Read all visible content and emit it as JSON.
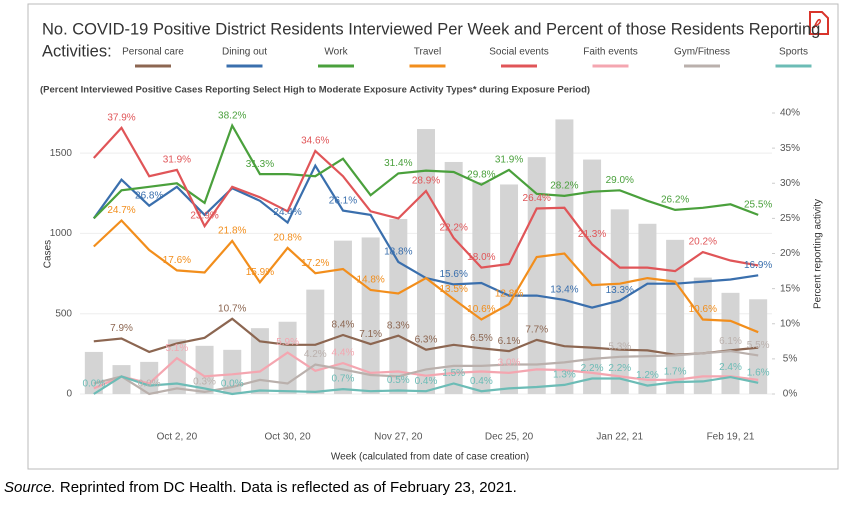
{
  "chart_data": {
    "type": "combo",
    "title": [
      "No. COVID-19 Positive District Residents Interviewed Per Week and Percent of those Residents Reporting",
      "Activities:"
    ],
    "subtitle": "(Percent Interviewed Positive Cases Reporting Select High to Moderate Exposure Activity Types* during Exposure Period)",
    "ylabel": "Cases",
    "y2label": "Percent reporting activity",
    "xlabel": "Week (calculated from date of case creation)",
    "categories": [
      null,
      null,
      null,
      "Oct 2, 20",
      null,
      null,
      null,
      "Oct 30, 20",
      null,
      null,
      null,
      "Nov 27, 20",
      null,
      null,
      null,
      "Dec 25, 20",
      null,
      null,
      null,
      "Jan 22, 21",
      null,
      null,
      null,
      "Feb 19, 21",
      null
    ],
    "ylim": [
      0,
      1750
    ],
    "yticks": [
      0,
      500,
      1000,
      1500
    ],
    "y2lim": [
      0,
      40
    ],
    "y2ticks": [
      {
        "value": 0,
        "label": "0%"
      },
      {
        "value": 5,
        "label": "5%"
      },
      {
        "value": 10,
        "label": "10%"
      },
      {
        "value": 15,
        "label": "15%"
      },
      {
        "value": 20,
        "label": "20%"
      },
      {
        "value": 25,
        "label": "25%"
      },
      {
        "value": 30,
        "label": "30%"
      },
      {
        "value": 35,
        "label": "35%"
      },
      {
        "value": 40,
        "label": "40%"
      }
    ],
    "grid": true,
    "bars": {
      "color": "#d4d4d4",
      "values": [
        262,
        180,
        200,
        340,
        300,
        275,
        410,
        450,
        650,
        955,
        975,
        1090,
        1650,
        1445,
        1320,
        1305,
        1475,
        1710,
        1460,
        1150,
        1060,
        960,
        725,
        630,
        590
      ]
    },
    "series": [
      {
        "name": "Personal care",
        "color": "#8c6651",
        "axis": "y2",
        "values": [
          7.5,
          7.9,
          6,
          7.2,
          8,
          10.7,
          7.5,
          7,
          7,
          8.4,
          7.1,
          8.3,
          6.3,
          7,
          6.5,
          6.1,
          7.7,
          6.8,
          6.6,
          6.3,
          6.2,
          5.6,
          5.8,
          6.2,
          6.6
        ],
        "value_labels": [
          null,
          "7.9%",
          null,
          null,
          null,
          "10.7%",
          null,
          null,
          null,
          "8.4%",
          "7.1%",
          "8.3%",
          "6.3%",
          null,
          "6.5%",
          "6.1%",
          "7.7%",
          null,
          null,
          null,
          null,
          null,
          null,
          null,
          null
        ]
      },
      {
        "name": "Dining out",
        "color": "#3a6fad",
        "axis": "y2",
        "values": [
          25,
          30.5,
          26.8,
          29.5,
          25.5,
          29.3,
          27.5,
          24.4,
          32.5,
          26.1,
          25.5,
          18.8,
          16.5,
          15.6,
          15.8,
          14,
          14,
          13.4,
          12.3,
          13.3,
          15.7,
          15.7,
          16,
          16.3,
          16.9
        ],
        "value_labels": [
          null,
          null,
          "26.8%",
          null,
          null,
          null,
          null,
          "24.4%",
          null,
          "26.1%",
          null,
          "18.8%",
          null,
          "15.6%",
          null,
          null,
          null,
          "13.4%",
          null,
          "13.3%",
          null,
          null,
          null,
          null,
          "16.9%"
        ]
      },
      {
        "name": "Work",
        "color": "#4aa03c",
        "axis": "y2",
        "values": [
          25,
          29,
          29.5,
          30,
          27.2,
          38.2,
          31.3,
          31.3,
          31,
          33.5,
          28.3,
          31.4,
          31.8,
          31.6,
          29.8,
          31.9,
          28.5,
          28.2,
          28.8,
          29.0,
          27.5,
          26.2,
          26.5,
          27,
          25.5
        ],
        "value_labels": [
          null,
          null,
          null,
          null,
          null,
          "38.2%",
          "31.3%",
          null,
          null,
          null,
          null,
          "31.4%",
          null,
          null,
          "29.8%",
          "31.9%",
          null,
          "28.2%",
          null,
          "29.0%",
          null,
          "26.2%",
          null,
          null,
          "25.5%"
        ]
      },
      {
        "name": "Travel",
        "color": "#f28e1c",
        "axis": "y2",
        "values": [
          21,
          24.7,
          20.5,
          17.6,
          17.3,
          21.8,
          15.9,
          20.8,
          17.2,
          17.8,
          14.8,
          14.3,
          16.5,
          13.5,
          10.6,
          12.8,
          19.5,
          20,
          15.5,
          15.7,
          16.5,
          16,
          10.6,
          10.4,
          8.8
        ],
        "value_labels": [
          null,
          "24.7%",
          null,
          "17.6%",
          null,
          "21.8%",
          "15.9%",
          "20.8%",
          "17.2%",
          null,
          "14.8%",
          null,
          null,
          "13.5%",
          "10.6%",
          "12.8%",
          null,
          null,
          null,
          null,
          null,
          null,
          "10.6%",
          null,
          null
        ]
      },
      {
        "name": "Social events",
        "color": "#e05558",
        "axis": "y2",
        "values": [
          33.6,
          37.9,
          31,
          31.9,
          23.9,
          29.5,
          28,
          26,
          34.6,
          31,
          26,
          25,
          28.9,
          22.2,
          18.0,
          18.5,
          26.4,
          26.5,
          21.3,
          18,
          18,
          17.5,
          20.2,
          19,
          18.3
        ],
        "value_labels": [
          null,
          "37.9%",
          null,
          "31.9%",
          "23.9%",
          null,
          null,
          null,
          "34.6%",
          null,
          null,
          null,
          "28.9%",
          "22.2%",
          "18.0%",
          null,
          "26.4%",
          null,
          "21.3%",
          null,
          null,
          null,
          "20.2%",
          null,
          null
        ]
      },
      {
        "name": "Faith events",
        "color": "#f4a6b0",
        "axis": "y2",
        "values": [
          0.8,
          2.5,
          1.5,
          5.1,
          2.5,
          2.8,
          3.2,
          5.9,
          3.3,
          4.4,
          3,
          3.2,
          2.6,
          3,
          3.2,
          3.0,
          3.5,
          3.4,
          3,
          2.5,
          2,
          2,
          2.5,
          2.5,
          2
        ],
        "value_labels": [
          null,
          null,
          null,
          "5.1%",
          null,
          null,
          null,
          "5.9%",
          null,
          "4.4%",
          null,
          null,
          null,
          null,
          null,
          "3.0%",
          null,
          null,
          null,
          null,
          null,
          null,
          null,
          null,
          null
        ]
      },
      {
        "name": "Gym/Fitness",
        "color": "#bab0ac",
        "axis": "y2",
        "values": [
          1.5,
          2.5,
          0.0,
          0.8,
          0.3,
          1,
          2,
          1.5,
          4.2,
          3.5,
          2.7,
          2.5,
          3.5,
          4,
          4,
          4.2,
          4.2,
          4.5,
          5,
          5.3,
          5.4,
          5.5,
          5.8,
          6.1,
          5.5
        ],
        "value_labels": [
          null,
          null,
          "0.0%",
          null,
          "0.3%",
          null,
          null,
          null,
          "4.2%",
          null,
          null,
          null,
          null,
          null,
          null,
          null,
          null,
          null,
          null,
          "5.3%",
          null,
          null,
          null,
          "6.1%",
          "5.5%"
        ]
      },
      {
        "name": "Sports",
        "color": "#6cbcb6",
        "axis": "y2",
        "values": [
          0.0,
          2.5,
          1.2,
          1.5,
          0.8,
          0.0,
          0.5,
          0.4,
          0.3,
          0.7,
          0.4,
          0.5,
          0.4,
          1.5,
          0.4,
          0.8,
          1,
          1.3,
          2.2,
          2.2,
          1.2,
          1.7,
          1.8,
          2.4,
          1.6
        ],
        "value_labels": [
          "0.0%",
          null,
          null,
          null,
          null,
          "0.0%",
          null,
          null,
          null,
          "0.7%",
          null,
          "0.5%",
          "0.4%",
          "1.5%",
          "0.4%",
          null,
          null,
          "1.3%",
          "2.2%",
          "2.2%",
          "1.2%",
          "1.7%",
          null,
          "2.4%",
          "1.6%"
        ]
      }
    ]
  },
  "source_label": "Source.",
  "source_text": " Reprinted from DC Health. Data is reflected as of February 23, 2021."
}
